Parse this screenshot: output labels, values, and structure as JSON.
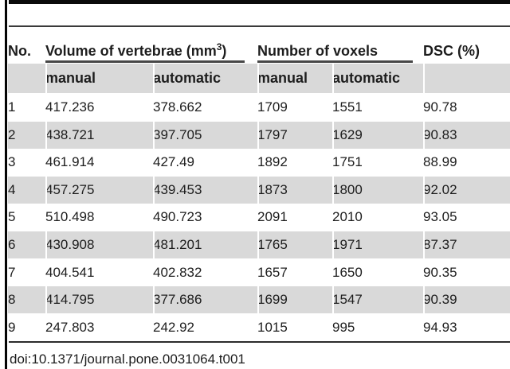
{
  "colors": {
    "stripe_gray": "#d9d9d9",
    "rule_dark": "#3a3a3a",
    "border_black": "#0a0a0a",
    "text": "#1d1d1d"
  },
  "table": {
    "header": {
      "no": "No.",
      "volume_group_pre": "Volume of vertebrae (mm",
      "volume_group_sup": "3",
      "volume_group_post": ")",
      "voxels_group": "Number of voxels",
      "dsc": "DSC (%)"
    },
    "subheader": {
      "vol_manual": "manual",
      "vol_automatic": "automatic",
      "vox_manual": "manual",
      "vox_automatic": "automatic"
    },
    "rows": [
      {
        "no": "1",
        "vol_manual": "417.236",
        "vol_automatic": "378.662",
        "vox_manual": "1709",
        "vox_automatic": "1551",
        "dsc": "90.78"
      },
      {
        "no": "2",
        "vol_manual": "438.721",
        "vol_automatic": "397.705",
        "vox_manual": "1797",
        "vox_automatic": "1629",
        "dsc": "90.83"
      },
      {
        "no": "3",
        "vol_manual": "461.914",
        "vol_automatic": "427.49",
        "vox_manual": "1892",
        "vox_automatic": "1751",
        "dsc": "88.99"
      },
      {
        "no": "4",
        "vol_manual": "457.275",
        "vol_automatic": "439.453",
        "vox_manual": "1873",
        "vox_automatic": "1800",
        "dsc": "92.02"
      },
      {
        "no": "5",
        "vol_manual": "510.498",
        "vol_automatic": "490.723",
        "vox_manual": "2091",
        "vox_automatic": "2010",
        "dsc": "93.05"
      },
      {
        "no": "6",
        "vol_manual": "430.908",
        "vol_automatic": "481.201",
        "vox_manual": "1765",
        "vox_automatic": "1971",
        "dsc": "87.37"
      },
      {
        "no": "7",
        "vol_manual": "404.541",
        "vol_automatic": "402.832",
        "vox_manual": "1657",
        "vox_automatic": "1650",
        "dsc": "90.35"
      },
      {
        "no": "8",
        "vol_manual": "414.795",
        "vol_automatic": "377.686",
        "vox_manual": "1699",
        "vox_automatic": "1547",
        "dsc": "90.39"
      },
      {
        "no": "9",
        "vol_manual": "247.803",
        "vol_automatic": "242.92",
        "vox_manual": "1015",
        "vox_automatic": "995",
        "dsc": "94.93"
      }
    ],
    "footer_doi": "doi:10.1371/journal.pone.0031064.t001"
  }
}
